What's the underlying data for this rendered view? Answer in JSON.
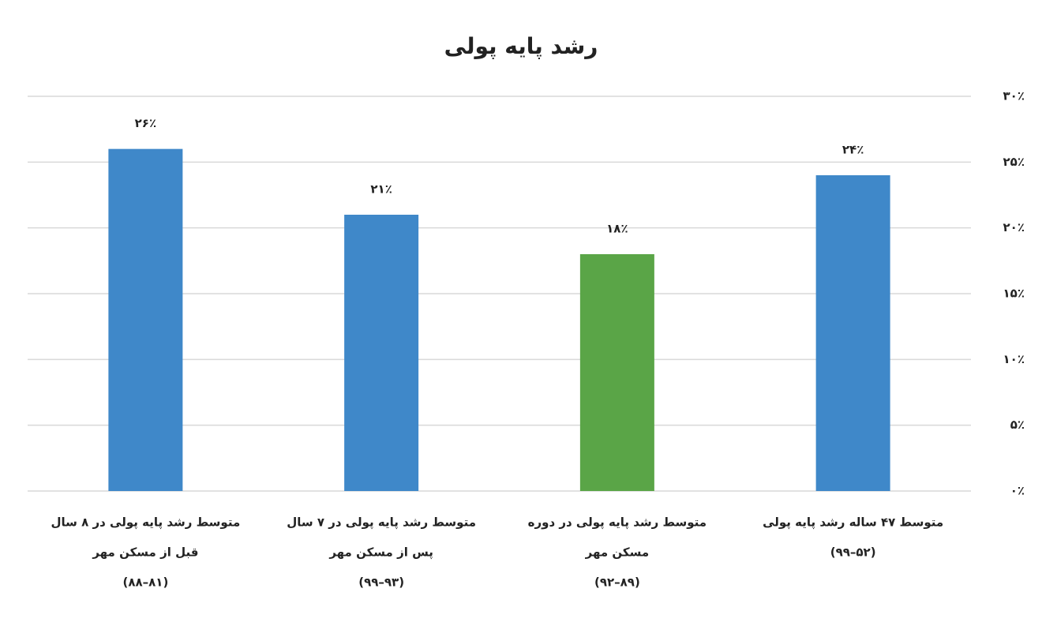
{
  "chart_data": {
    "type": "bar",
    "title": "رشد پایه پولی",
    "categories": [
      [
        "متوسط ۴۷ ساله رشد پایه پولی",
        "(۵۲–۹۹)"
      ],
      [
        "متوسط رشد پایه پولی در دوره",
        "مسکن مهر",
        "(۸۹–۹۲)"
      ],
      [
        "متوسط رشد پایه پولی در ۷ سال",
        "پس از مسکن مهر",
        "(۹۳–۹۹)"
      ],
      [
        "متوسط رشد پایه پولی در ۸ سال",
        "قبل از مسکن مهر",
        "(۸۱–۸۸)"
      ]
    ],
    "values": [
      24,
      18,
      21,
      26
    ],
    "value_labels": [
      "۲۴٪",
      "۱۸٪",
      "۲۱٪",
      "۲۶٪"
    ],
    "colors": [
      "#3f88c9",
      "#5aa547",
      "#3f88c9",
      "#3f88c9"
    ],
    "ylim": [
      0,
      30
    ],
    "yticks": [
      {
        "value": 0,
        "label": "۰٪"
      },
      {
        "value": 5,
        "label": "۵٪"
      },
      {
        "value": 10,
        "label": "۱۰٪"
      },
      {
        "value": 15,
        "label": "۱۵٪"
      },
      {
        "value": 20,
        "label": "۲۰٪"
      },
      {
        "value": 25,
        "label": "۲۵٪"
      },
      {
        "value": 30,
        "label": "۳۰٪"
      }
    ],
    "grid": true
  }
}
